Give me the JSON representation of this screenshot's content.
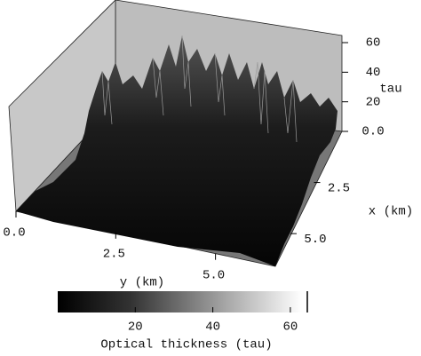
{
  "chart_data": {
    "type": "surface3d",
    "zlabel": "tau",
    "xlabel": "x (km)",
    "ylabel": "y (km)",
    "zlim": [
      0,
      60
    ],
    "zticks": [
      {
        "value": 0,
        "label": "0.0"
      },
      20,
      40,
      60
    ],
    "xlim": [
      0,
      6.6
    ],
    "xticks": [
      2.5,
      {
        "value": 5,
        "label": "5.0"
      }
    ],
    "ylim": [
      0,
      6.5
    ],
    "yticks": [
      {
        "value": 0,
        "label": "0.0"
      },
      2.5,
      {
        "value": 5,
        "label": "5.0"
      }
    ],
    "colorbar": {
      "label": "Optical thickness (tau)",
      "clim": [
        0,
        63
      ],
      "ticks": [
        20,
        40,
        60
      ]
    }
  }
}
